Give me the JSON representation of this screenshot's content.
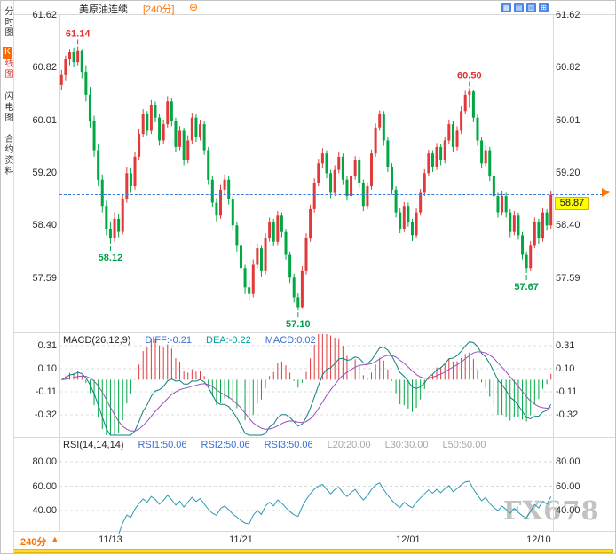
{
  "sidebar": {
    "tab_time": "分时图",
    "tab_k_prefix": "K",
    "tab_k_rest": "线图",
    "tab_lightning": "闪电图",
    "tab_contract": "合约资料"
  },
  "header": {
    "title": "美原油连续",
    "period": "[240分]",
    "collapse_glyph": "⊖",
    "toolbar_icons": [
      {
        "name": "layout-grid-icon",
        "glyph": "▦"
      },
      {
        "name": "layout-rows-icon",
        "glyph": "▤"
      },
      {
        "name": "layout-columns-icon",
        "glyph": "▥"
      },
      {
        "name": "layout-single-icon",
        "glyph": "⊞"
      }
    ]
  },
  "footer": {
    "period_button": "240分",
    "period_arrow": "▲",
    "watermark": "FX678"
  },
  "chart_data": {
    "type": "candlestick",
    "title": "美原油连续",
    "period": "240分",
    "y_axis": {
      "ticks": [
        "61.62",
        "60.82",
        "60.01",
        "59.20",
        "58.40",
        "57.59"
      ]
    },
    "x_axis": {
      "labels": [
        {
          "text": "11/13",
          "index": 12
        },
        {
          "text": "11/21",
          "index": 44
        },
        {
          "text": "12/01",
          "index": 85
        },
        {
          "text": "12/10",
          "index": 117
        }
      ]
    },
    "last_price": {
      "value": 58.87,
      "label": "58.87"
    },
    "annotations": [
      {
        "text": "61.14",
        "index": 4,
        "price": 61.14,
        "color": "#e03232",
        "placement": "above"
      },
      {
        "text": "58.12",
        "index": 12,
        "price": 58.12,
        "color": "#00a04a",
        "placement": "below"
      },
      {
        "text": "57.10",
        "index": 58,
        "price": 57.1,
        "color": "#00a04a",
        "placement": "below"
      },
      {
        "text": "60.50",
        "index": 100,
        "price": 60.5,
        "color": "#e03232",
        "placement": "above"
      },
      {
        "text": "57.67",
        "index": 114,
        "price": 57.67,
        "color": "#00a04a",
        "placement": "below"
      }
    ],
    "macd": {
      "title": "MACD(26,12,9)",
      "diff_label": "DIFF:-0.21",
      "dea_label": "DEA:-0.22",
      "macd_label": "MACD:0.02",
      "ticks": [
        "0.31",
        "0.10",
        "-0.11",
        "-0.32"
      ]
    },
    "rsi": {
      "title": "RSI(14,14,14)",
      "rsi1_label": "RSI1:50.06",
      "rsi2_label": "RSI2:50.06",
      "rsi3_label": "RSI3:50.06",
      "l20_label": "L20:20.00",
      "l30_label": "L30:30.00",
      "l50_label": "L50:50.00",
      "ticks": [
        "80.00",
        "60.00",
        "40.00"
      ]
    },
    "colors": {
      "up": "#e23a3a",
      "down": "#00a843",
      "diff_line": "#0e8080",
      "dea_line": "#9b4fc0",
      "rsi_line": "#2e9ab0",
      "price_line": "#3a7bd5",
      "tag_bg": "#ffff00",
      "accent_orange": "#ff7300",
      "label_blue": "#3a6fd8",
      "label_teal": "#00a2a2",
      "label_gray": "#a8a8a8"
    },
    "candles": [
      [
        60.55,
        60.78,
        60.48,
        60.7
      ],
      [
        60.7,
        61.0,
        60.62,
        60.95
      ],
      [
        60.95,
        61.1,
        60.85,
        61.05
      ],
      [
        61.05,
        61.12,
        60.82,
        60.9
      ],
      [
        60.9,
        61.14,
        60.85,
        61.08
      ],
      [
        61.08,
        61.1,
        60.65,
        60.75
      ],
      [
        60.75,
        60.85,
        60.3,
        60.4
      ],
      [
        60.4,
        60.52,
        59.9,
        60.0
      ],
      [
        60.0,
        60.08,
        59.45,
        59.55
      ],
      [
        59.55,
        59.65,
        59.0,
        59.1
      ],
      [
        59.1,
        59.18,
        58.6,
        58.7
      ],
      [
        58.7,
        58.78,
        58.25,
        58.35
      ],
      [
        58.35,
        58.45,
        58.12,
        58.2
      ],
      [
        58.2,
        58.6,
        58.15,
        58.5
      ],
      [
        58.5,
        58.58,
        58.22,
        58.3
      ],
      [
        58.3,
        58.88,
        58.26,
        58.8
      ],
      [
        58.8,
        59.3,
        58.75,
        59.2
      ],
      [
        59.2,
        59.28,
        58.9,
        59.0
      ],
      [
        59.0,
        59.52,
        58.95,
        59.45
      ],
      [
        59.45,
        59.88,
        59.4,
        59.8
      ],
      [
        59.8,
        60.18,
        59.75,
        60.1
      ],
      [
        60.1,
        60.15,
        59.78,
        59.85
      ],
      [
        59.85,
        60.32,
        59.8,
        60.25
      ],
      [
        60.25,
        60.3,
        59.98,
        60.05
      ],
      [
        60.05,
        60.1,
        59.62,
        59.7
      ],
      [
        59.7,
        60.02,
        59.65,
        59.95
      ],
      [
        59.95,
        60.38,
        59.9,
        60.3
      ],
      [
        60.3,
        60.35,
        59.92,
        60.0
      ],
      [
        60.0,
        60.05,
        59.52,
        59.6
      ],
      [
        59.6,
        59.92,
        59.55,
        59.85
      ],
      [
        59.85,
        59.9,
        59.32,
        59.4
      ],
      [
        59.4,
        59.78,
        59.35,
        59.7
      ],
      [
        59.7,
        60.12,
        59.65,
        60.05
      ],
      [
        60.05,
        60.1,
        59.68,
        59.75
      ],
      [
        59.75,
        60.02,
        59.7,
        59.95
      ],
      [
        59.95,
        60.0,
        59.48,
        59.55
      ],
      [
        59.55,
        59.6,
        59.02,
        59.1
      ],
      [
        59.1,
        59.15,
        58.68,
        58.75
      ],
      [
        58.75,
        58.82,
        58.45,
        58.55
      ],
      [
        58.55,
        59.02,
        58.5,
        58.95
      ],
      [
        58.95,
        59.18,
        58.88,
        59.1
      ],
      [
        59.1,
        59.15,
        58.72,
        58.8
      ],
      [
        58.8,
        58.85,
        58.32,
        58.4
      ],
      [
        58.4,
        58.46,
        58.0,
        58.1
      ],
      [
        58.1,
        58.15,
        57.66,
        57.75
      ],
      [
        57.75,
        57.8,
        57.35,
        57.45
      ],
      [
        57.45,
        57.55,
        57.26,
        57.35
      ],
      [
        57.35,
        57.88,
        57.3,
        57.8
      ],
      [
        57.8,
        58.12,
        57.75,
        58.05
      ],
      [
        58.05,
        58.1,
        57.62,
        57.7
      ],
      [
        57.7,
        58.28,
        57.65,
        58.2
      ],
      [
        58.2,
        58.52,
        58.15,
        58.45
      ],
      [
        58.45,
        58.5,
        58.08,
        58.15
      ],
      [
        58.15,
        58.62,
        58.1,
        58.55
      ],
      [
        58.55,
        58.6,
        58.22,
        58.3
      ],
      [
        58.3,
        58.35,
        57.88,
        57.95
      ],
      [
        57.95,
        58.0,
        57.52,
        57.6
      ],
      [
        57.6,
        57.66,
        57.22,
        57.3
      ],
      [
        57.3,
        57.36,
        57.1,
        57.15
      ],
      [
        57.15,
        57.78,
        57.12,
        57.7
      ],
      [
        57.7,
        58.28,
        57.65,
        58.2
      ],
      [
        58.2,
        58.72,
        58.15,
        58.65
      ],
      [
        58.65,
        59.12,
        58.6,
        59.05
      ],
      [
        59.05,
        59.42,
        59.0,
        59.35
      ],
      [
        59.35,
        59.58,
        59.28,
        59.5
      ],
      [
        59.5,
        59.55,
        59.12,
        59.2
      ],
      [
        59.2,
        59.25,
        58.82,
        58.9
      ],
      [
        58.9,
        59.32,
        58.85,
        59.25
      ],
      [
        59.25,
        59.52,
        59.2,
        59.45
      ],
      [
        59.45,
        59.5,
        59.02,
        59.1
      ],
      [
        59.1,
        59.15,
        58.78,
        58.85
      ],
      [
        58.85,
        59.22,
        58.8,
        59.15
      ],
      [
        59.15,
        59.46,
        59.1,
        59.4
      ],
      [
        59.4,
        59.45,
        58.98,
        59.05
      ],
      [
        59.05,
        59.1,
        58.62,
        58.7
      ],
      [
        58.7,
        59.06,
        58.65,
        59.0
      ],
      [
        59.0,
        59.56,
        58.95,
        59.5
      ],
      [
        59.5,
        59.96,
        59.45,
        59.9
      ],
      [
        59.9,
        60.16,
        59.85,
        60.1
      ],
      [
        60.1,
        60.15,
        59.62,
        59.7
      ],
      [
        59.7,
        59.75,
        59.22,
        59.3
      ],
      [
        59.3,
        59.35,
        58.88,
        58.95
      ],
      [
        58.95,
        59.0,
        58.52,
        58.6
      ],
      [
        58.6,
        58.66,
        58.28,
        58.35
      ],
      [
        58.35,
        58.76,
        58.3,
        58.7
      ],
      [
        58.7,
        58.75,
        58.38,
        58.45
      ],
      [
        58.45,
        58.5,
        58.16,
        58.25
      ],
      [
        58.25,
        58.66,
        58.2,
        58.6
      ],
      [
        58.6,
        58.96,
        58.55,
        58.9
      ],
      [
        58.9,
        59.26,
        58.85,
        59.2
      ],
      [
        59.2,
        59.56,
        59.15,
        59.5
      ],
      [
        59.5,
        59.55,
        59.22,
        59.3
      ],
      [
        59.3,
        59.66,
        59.25,
        59.6
      ],
      [
        59.6,
        59.65,
        59.32,
        59.4
      ],
      [
        59.4,
        59.76,
        59.35,
        59.7
      ],
      [
        59.7,
        60.02,
        59.65,
        59.95
      ],
      [
        59.95,
        60.0,
        59.52,
        59.6
      ],
      [
        59.6,
        59.92,
        59.55,
        59.85
      ],
      [
        59.85,
        60.22,
        59.8,
        60.15
      ],
      [
        60.15,
        60.46,
        60.1,
        60.4
      ],
      [
        60.4,
        60.5,
        60.2,
        60.45
      ],
      [
        60.45,
        60.48,
        59.98,
        60.05
      ],
      [
        60.05,
        60.1,
        59.62,
        59.7
      ],
      [
        59.7,
        59.75,
        59.28,
        59.35
      ],
      [
        59.35,
        59.62,
        59.3,
        59.55
      ],
      [
        59.55,
        59.6,
        59.08,
        59.15
      ],
      [
        59.15,
        59.2,
        58.78,
        58.85
      ],
      [
        58.85,
        58.9,
        58.52,
        58.6
      ],
      [
        58.6,
        58.92,
        58.55,
        58.85
      ],
      [
        58.85,
        58.9,
        58.52,
        58.6
      ],
      [
        58.6,
        58.65,
        58.22,
        58.3
      ],
      [
        58.3,
        58.62,
        58.25,
        58.55
      ],
      [
        58.55,
        58.6,
        58.18,
        58.25
      ],
      [
        58.25,
        58.3,
        57.88,
        57.95
      ],
      [
        57.95,
        58.0,
        57.67,
        57.75
      ],
      [
        57.75,
        58.16,
        57.7,
        58.1
      ],
      [
        58.1,
        58.52,
        58.05,
        58.45
      ],
      [
        58.45,
        58.5,
        58.12,
        58.2
      ],
      [
        58.2,
        58.66,
        58.15,
        58.6
      ],
      [
        58.6,
        58.65,
        58.32,
        58.4
      ],
      [
        58.4,
        58.92,
        58.35,
        58.87
      ]
    ]
  }
}
